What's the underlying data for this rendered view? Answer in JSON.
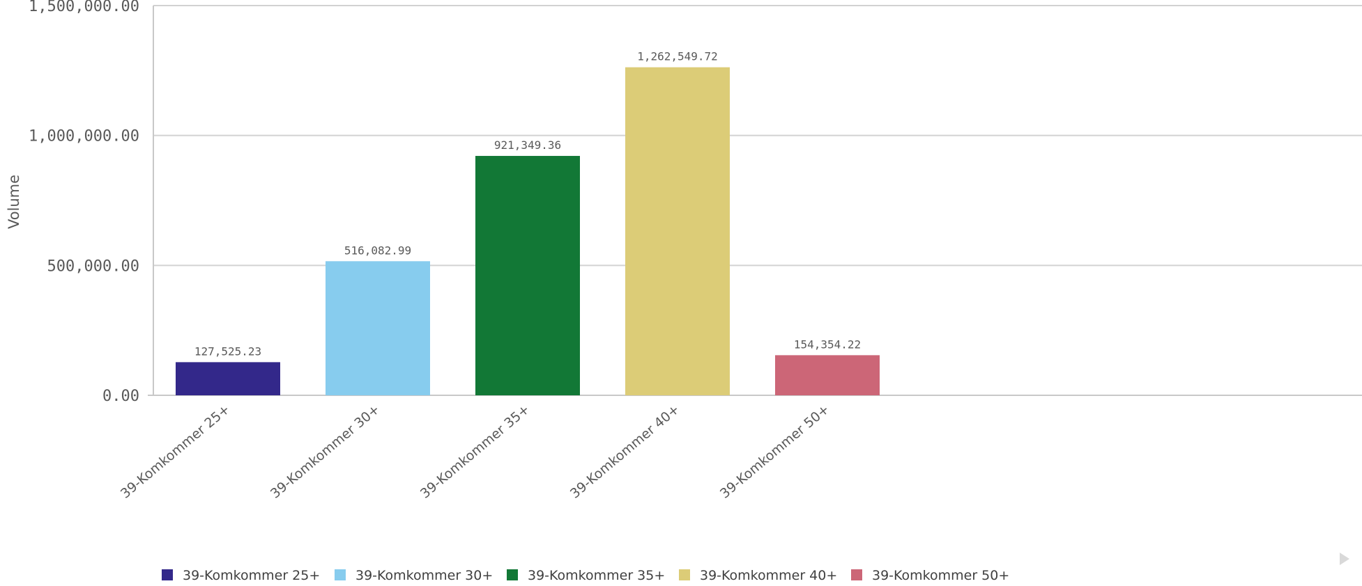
{
  "chart_data": {
    "type": "bar",
    "ylabel": "Volume",
    "xlabel": "",
    "ylim": [
      0,
      1500000
    ],
    "yticks": [
      0,
      500000,
      1000000,
      1500000
    ],
    "ytick_labels": [
      "0.00",
      "500,000.00",
      "1,000,000.00",
      "1,500,000.00"
    ],
    "grid": true,
    "legend_position": "bottom",
    "categories": [
      "39-Komkommer 25+",
      "39-Komkommer 30+",
      "39-Komkommer 35+",
      "39-Komkommer 40+",
      "39-Komkommer 50+"
    ],
    "values": [
      127525.23,
      516082.99,
      921349.36,
      1262549.72,
      154354.22
    ],
    "value_labels": [
      "127,525.23",
      "516,082.99",
      "921,349.36",
      "1,262,549.72",
      "154,354.22"
    ],
    "colors": [
      "#33288a",
      "#87ccee",
      "#127836",
      "#dccc77",
      "#cc6677"
    ]
  }
}
